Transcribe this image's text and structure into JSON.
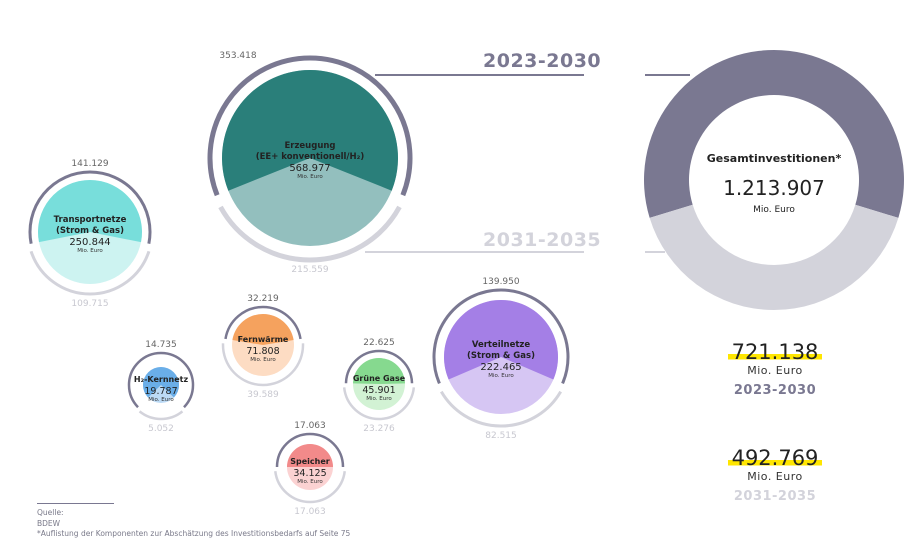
{
  "chart_data": {
    "type": "bubble-split",
    "unit": "Mio. Euro",
    "periods": [
      "2023-2030",
      "2031-2035"
    ],
    "colors": {
      "period1": "#7a7891",
      "period2": "#d3d3db",
      "highlight": "#ffe600"
    },
    "total": {
      "label": "Gesamtinvestitionen*",
      "value": "1.213.907",
      "unit": "Mio. Euro",
      "period1": "721.138",
      "period2": "492.769"
    },
    "components": [
      {
        "name": [
          "Erzeugung",
          "(EE+ konventionell/H₂)"
        ],
        "total": "568.977",
        "p1": "353.418",
        "p2": "215.559",
        "dark": "#2a7f7a",
        "light": "#93bfbe"
      },
      {
        "name": [
          "Transportnetze",
          "(Strom & Gas)"
        ],
        "total": "250.844",
        "p1": "141.129",
        "p2": "109.715",
        "dark": "#78dedb",
        "light": "#cdf3f1"
      },
      {
        "name": [
          "Fernwärme"
        ],
        "total": "71.808",
        "p1": "32.219",
        "p2": "39.589",
        "dark": "#f5a25e",
        "light": "#fddcc3"
      },
      {
        "name": [
          "H₂-Kernnetz"
        ],
        "total": "19.787",
        "p1": "14.735",
        "p2": "5.052",
        "dark": "#6aaee8",
        "light": "#bcdaf5"
      },
      {
        "name": [
          "Grüne Gase"
        ],
        "total": "45.901",
        "p1": "22.625",
        "p2": "23.276",
        "dark": "#86d98f",
        "light": "#d2f2d4"
      },
      {
        "name": [
          "Speicher"
        ],
        "total": "34.125",
        "p1": "17.063",
        "p2": "17.063",
        "dark": "#f28a8a",
        "light": "#fbd2d2"
      },
      {
        "name": [
          "Verteilnetze",
          "(Strom & Gas)"
        ],
        "total": "222.465",
        "p1": "139.950",
        "p2": "82.515",
        "dark": "#a47fe6",
        "light": "#d6c6f3"
      }
    ]
  },
  "footer": {
    "source_label": "Quelle:",
    "source": "BDEW",
    "note": "*Auflistung der Komponenten zur Abschätzung des Investitionsbedarfs auf Seite 75"
  }
}
